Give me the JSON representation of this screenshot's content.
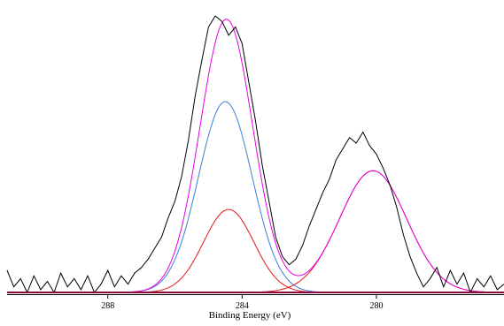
{
  "chart_data": {
    "type": "line",
    "title": "",
    "xlabel": "Binding Energy (eV)",
    "ylabel": "",
    "x_reversed": true,
    "xlim": [
      291.0,
      276.2
    ],
    "ylim": [
      0,
      1.0
    ],
    "grid": false,
    "legend": "none",
    "xticks": [
      {
        "value": 288,
        "label": "288"
      },
      {
        "value": 284,
        "label": "284"
      },
      {
        "value": 280,
        "label": "280"
      }
    ],
    "colors": {
      "raw": "#000000",
      "envelope": "#e600e6",
      "component_1": "#3a7fd6",
      "component_2": "#e01818",
      "component_3": "#e01818",
      "baseline": "#8b0a3a"
    },
    "series": [
      {
        "key": "raw",
        "x": [
          291.0,
          290.8,
          290.6,
          290.4,
          290.2,
          290.0,
          289.8,
          289.6,
          289.4,
          289.2,
          289.0,
          288.8,
          288.6,
          288.4,
          288.2,
          288.0,
          287.8,
          287.6,
          287.4,
          287.2,
          287.0,
          286.8,
          286.6,
          286.4,
          286.2,
          286.0,
          285.8,
          285.6,
          285.4,
          285.2,
          285.0,
          284.8,
          284.6,
          284.4,
          284.2,
          284.0,
          283.8,
          283.6,
          283.4,
          283.2,
          283.0,
          282.8,
          282.6,
          282.4,
          282.2,
          282.0,
          281.8,
          281.6,
          281.4,
          281.2,
          281.0,
          280.8,
          280.6,
          280.4,
          280.2,
          280.0,
          279.8,
          279.6,
          279.4,
          279.2,
          279.0,
          278.8,
          278.6,
          278.4,
          278.2,
          278.0,
          277.8,
          277.6,
          277.4,
          277.2,
          277.0,
          276.8,
          276.6,
          276.4,
          276.2
        ],
        "y": [
          0.08,
          0.02,
          0.05,
          0.0,
          0.06,
          0.01,
          0.04,
          0.0,
          0.07,
          0.02,
          0.05,
          0.01,
          0.06,
          0.0,
          0.03,
          0.08,
          0.02,
          0.06,
          0.03,
          0.07,
          0.09,
          0.12,
          0.16,
          0.2,
          0.27,
          0.33,
          0.42,
          0.55,
          0.71,
          0.84,
          0.96,
          1.0,
          0.98,
          0.93,
          0.96,
          0.9,
          0.76,
          0.62,
          0.46,
          0.33,
          0.2,
          0.13,
          0.1,
          0.12,
          0.17,
          0.24,
          0.3,
          0.36,
          0.41,
          0.48,
          0.52,
          0.56,
          0.54,
          0.58,
          0.53,
          0.5,
          0.45,
          0.39,
          0.31,
          0.21,
          0.13,
          0.07,
          0.02,
          0.05,
          0.09,
          0.02,
          0.08,
          0.03,
          0.07,
          0.0,
          0.05,
          0.02,
          0.06,
          0.01,
          0.03
        ]
      }
    ],
    "fits": [
      {
        "key": "component_1",
        "center": 284.5,
        "height": 0.69,
        "sigma": 0.8
      },
      {
        "key": "component_2",
        "center": 284.4,
        "height": 0.3,
        "sigma": 0.75
      },
      {
        "key": "component_3",
        "center": 280.1,
        "height": 0.44,
        "sigma": 1.0
      },
      {
        "key": "envelope",
        "components": [
          "component_1",
          "component_2",
          "component_3"
        ]
      }
    ]
  }
}
